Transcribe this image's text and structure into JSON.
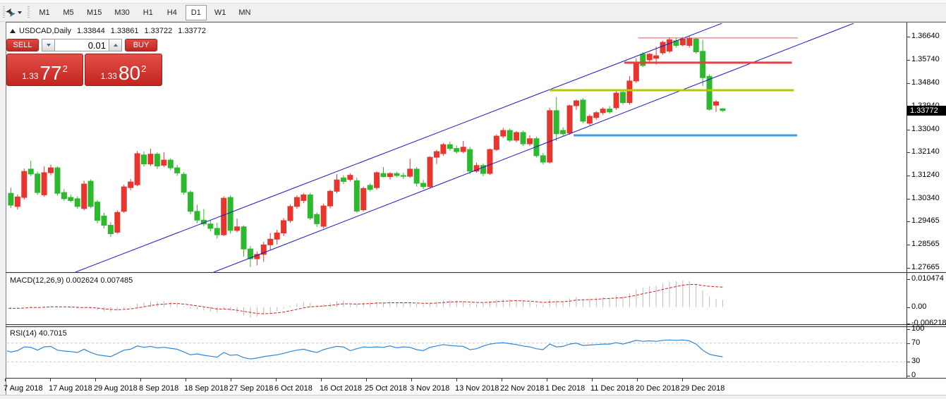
{
  "toolbar": {
    "tool_icon": "cursor-arrows-icon",
    "dropdown_icon": "caret-down-icon",
    "timeframes": [
      {
        "label": "M1",
        "active": false
      },
      {
        "label": "M5",
        "active": false
      },
      {
        "label": "M15",
        "active": false
      },
      {
        "label": "M30",
        "active": false
      },
      {
        "label": "H1",
        "active": false
      },
      {
        "label": "H4",
        "active": false
      },
      {
        "label": "D1",
        "active": true
      },
      {
        "label": "W1",
        "active": false
      },
      {
        "label": "MN",
        "active": false
      }
    ]
  },
  "chart": {
    "header": {
      "symbol": "USDCAD,Daily",
      "open": "1.33844",
      "high": "1.33861",
      "low": "1.33722",
      "close": "1.33772"
    },
    "one_click": {
      "sell_label": "SELL",
      "buy_label": "BUY",
      "volume": "0.01",
      "sell_price_small": "1.33",
      "sell_price_big": "77",
      "sell_price_sup": "2",
      "buy_price_small": "1.33",
      "buy_price_big": "80",
      "buy_price_sup": "2"
    },
    "current_price_tag": "1.33772",
    "price_axis_labels": [
      "1.36640",
      "1.35740",
      "1.34840",
      "1.33940",
      "1.33040",
      "1.32140",
      "1.31240",
      "1.30340",
      "1.29465",
      "1.28565",
      "1.27665"
    ],
    "date_axis_labels": [
      "7 Aug 2018",
      "17 Aug 2018",
      "29 Aug 2018",
      "8 Sep 2018",
      "18 Sep 2018",
      "27 Sep 2018",
      "6 Oct 2018",
      "16 Oct 2018",
      "25 Oct 2018",
      "3 Nov 2018",
      "13 Nov 2018",
      "22 Nov 2018",
      "1 Dec 2018",
      "11 Dec 2018",
      "20 Dec 2018",
      "29 Dec 2018"
    ]
  },
  "indicators": {
    "macd": {
      "label": "MACD(12,26,9) 0.002624 0.007485",
      "axis_labels": [
        "0.010474",
        "0.00",
        "-0.006218"
      ],
      "axis_values": [
        0.010474,
        0,
        -0.006218
      ]
    },
    "rsi": {
      "label": "RSI(14) 40.7015",
      "axis_labels": [
        "100",
        "70",
        "30",
        "0"
      ],
      "axis_values": [
        100,
        70,
        30,
        0
      ]
    }
  },
  "chart_data": {
    "type": "candlestick",
    "symbol": "USDCAD",
    "timeframe": "Daily",
    "price_range": {
      "top": 1.3716,
      "bottom": 1.27502
    },
    "colors": {
      "bull": "#e8352e",
      "bear": "#2db92d",
      "trend": "#1616c8",
      "res_thin": "#ff5252",
      "res_thick": "#f03c3c",
      "pivot_olive": "#b7c800",
      "support_blue": "#3c9fe6",
      "macd_hist": "#b9b9b9",
      "macd_signal": "#d02020",
      "rsi_line": "#2e86d9",
      "rsi_level": "#c8c8c8"
    },
    "candles": [
      [
        1.2994,
        1.3066,
        1.298,
        1.3054
      ],
      [
        1.3056,
        1.3078,
        1.2999,
        1.301
      ],
      [
        1.3005,
        1.3052,
        1.2993,
        1.3042
      ],
      [
        1.304,
        1.3152,
        1.3032,
        1.3141
      ],
      [
        1.315,
        1.3183,
        1.3122,
        1.3131
      ],
      [
        1.3131,
        1.314,
        1.305,
        1.3059
      ],
      [
        1.305,
        1.316,
        1.3043,
        1.3136
      ],
      [
        1.3136,
        1.3168,
        1.3126,
        1.3155
      ],
      [
        1.3155,
        1.3161,
        1.3048,
        1.3056
      ],
      [
        1.3059,
        1.3072,
        1.3026,
        1.3035
      ],
      [
        1.304,
        1.3051,
        1.3021,
        1.3028
      ],
      [
        1.3035,
        1.3044,
        1.2996,
        1.3005
      ],
      [
        1.2997,
        1.3105,
        1.299,
        1.3092
      ],
      [
        1.3103,
        1.311,
        1.2998,
        1.3005
      ],
      [
        1.3022,
        1.303,
        1.294,
        1.2951
      ],
      [
        1.2968,
        1.298,
        1.292,
        1.2932
      ],
      [
        1.2932,
        1.2944,
        1.2886,
        1.2899
      ],
      [
        1.2905,
        1.299,
        1.2899,
        1.2982
      ],
      [
        1.2986,
        1.309,
        1.298,
        1.3081
      ],
      [
        1.3078,
        1.3112,
        1.3068,
        1.31
      ],
      [
        1.3089,
        1.322,
        1.3083,
        1.321
      ],
      [
        1.3205,
        1.3218,
        1.316,
        1.317
      ],
      [
        1.317,
        1.3229,
        1.3162,
        1.3208
      ],
      [
        1.3208,
        1.3215,
        1.315,
        1.3162
      ],
      [
        1.3165,
        1.3215,
        1.3158,
        1.3185
      ],
      [
        1.3185,
        1.3192,
        1.3146,
        1.3155
      ],
      [
        1.3155,
        1.3166,
        1.3124,
        1.3135
      ],
      [
        1.313,
        1.3138,
        1.305,
        1.306
      ],
      [
        1.306,
        1.3068,
        1.2975,
        1.2986
      ],
      [
        1.2986,
        1.3012,
        1.294,
        1.2952
      ],
      [
        1.2952,
        1.2995,
        1.2928,
        1.2937
      ],
      [
        1.2937,
        1.295,
        1.2908,
        1.292
      ],
      [
        1.292,
        1.2942,
        1.288,
        1.2895
      ],
      [
        1.2895,
        1.3045,
        1.289,
        1.3037
      ],
      [
        1.304,
        1.3048,
        1.29,
        1.2912
      ],
      [
        1.2912,
        1.2958,
        1.2905,
        1.2926
      ],
      [
        1.2926,
        1.2932,
        1.281,
        1.284
      ],
      [
        1.284,
        1.2852,
        1.277,
        1.2802
      ],
      [
        1.2802,
        1.283,
        1.2776,
        1.2819
      ],
      [
        1.2819,
        1.2868,
        1.279,
        1.2856
      ],
      [
        1.2856,
        1.2902,
        1.2836,
        1.2878
      ],
      [
        1.2878,
        1.2915,
        1.2858,
        1.2902
      ],
      [
        1.2902,
        1.296,
        1.289,
        1.295
      ],
      [
        1.295,
        1.3012,
        1.2942,
        1.3005
      ],
      [
        1.3005,
        1.3048,
        1.2996,
        1.304
      ],
      [
        1.3028,
        1.3056,
        1.3018,
        1.305
      ],
      [
        1.305,
        1.3058,
        1.2952,
        1.296
      ],
      [
        1.2974,
        1.2982,
        1.2926,
        1.2938
      ],
      [
        1.2928,
        1.3015,
        1.292,
        1.3007
      ],
      [
        1.3007,
        1.307,
        1.2998,
        1.3064
      ],
      [
        1.3064,
        1.313,
        1.3056,
        1.3108
      ],
      [
        1.3116,
        1.3126,
        1.3092,
        1.3102
      ],
      [
        1.311,
        1.3134,
        1.3102,
        1.3126
      ],
      [
        1.3105,
        1.3118,
        1.298,
        1.2987
      ],
      [
        1.2992,
        1.3082,
        1.2985,
        1.3075
      ],
      [
        1.3087,
        1.3095,
        1.3064,
        1.3071
      ],
      [
        1.3078,
        1.3142,
        1.307,
        1.3136
      ],
      [
        1.3133,
        1.3158,
        1.3118,
        1.3121
      ],
      [
        1.3121,
        1.3138,
        1.311,
        1.3133
      ],
      [
        1.3133,
        1.314,
        1.3118,
        1.3125
      ],
      [
        1.3125,
        1.3136,
        1.3112,
        1.3122
      ],
      [
        1.3122,
        1.319,
        1.3116,
        1.315
      ],
      [
        1.315,
        1.3158,
        1.3082,
        1.3095
      ],
      [
        1.3095,
        1.3108,
        1.3072,
        1.3082
      ],
      [
        1.3082,
        1.32,
        1.3076,
        1.3196
      ],
      [
        1.3196,
        1.3225,
        1.317,
        1.3218
      ],
      [
        1.321,
        1.3252,
        1.3202,
        1.3245
      ],
      [
        1.3245,
        1.3256,
        1.3222,
        1.323
      ],
      [
        1.323,
        1.3242,
        1.321,
        1.3218
      ],
      [
        1.3218,
        1.3259,
        1.3212,
        1.3235
      ],
      [
        1.3226,
        1.3236,
        1.313,
        1.3142
      ],
      [
        1.3142,
        1.3175,
        1.3136,
        1.3164
      ],
      [
        1.3164,
        1.3172,
        1.3122,
        1.3133
      ],
      [
        1.3133,
        1.323,
        1.3128,
        1.3226
      ],
      [
        1.3226,
        1.3285,
        1.322,
        1.3278
      ],
      [
        1.3278,
        1.331,
        1.327,
        1.33
      ],
      [
        1.33,
        1.3308,
        1.3255,
        1.3262
      ],
      [
        1.3262,
        1.3298,
        1.3254,
        1.3292
      ],
      [
        1.3292,
        1.33,
        1.324,
        1.3248
      ],
      [
        1.3248,
        1.3282,
        1.324,
        1.3268
      ],
      [
        1.3268,
        1.3276,
        1.3195,
        1.3202
      ],
      [
        1.3202,
        1.3212,
        1.3168,
        1.3177
      ],
      [
        1.3177,
        1.3388,
        1.3172,
        1.3377
      ],
      [
        1.3377,
        1.343,
        1.3259,
        1.3287
      ],
      [
        1.33,
        1.3312,
        1.3278,
        1.3287
      ],
      [
        1.329,
        1.34,
        1.3284,
        1.3396
      ],
      [
        1.3396,
        1.342,
        1.338,
        1.3415
      ],
      [
        1.3418,
        1.3425,
        1.3328,
        1.3336
      ],
      [
        1.3328,
        1.3362,
        1.332,
        1.3355
      ],
      [
        1.335,
        1.3375,
        1.3342,
        1.3369
      ],
      [
        1.3369,
        1.339,
        1.336,
        1.3383
      ],
      [
        1.3383,
        1.3394,
        1.3365,
        1.3372
      ],
      [
        1.3388,
        1.3452,
        1.338,
        1.3445
      ],
      [
        1.3448,
        1.346,
        1.34,
        1.3408
      ],
      [
        1.3408,
        1.3511,
        1.34,
        1.3492
      ],
      [
        1.3492,
        1.358,
        1.3484,
        1.356
      ],
      [
        1.3596,
        1.3604,
        1.3546,
        1.3552
      ],
      [
        1.3574,
        1.36,
        1.3565,
        1.3596
      ],
      [
        1.358,
        1.3625,
        1.3556,
        1.359
      ],
      [
        1.3601,
        1.3648,
        1.3594,
        1.3642
      ],
      [
        1.3608,
        1.3662,
        1.36,
        1.3652
      ],
      [
        1.3648,
        1.3658,
        1.3622,
        1.363
      ],
      [
        1.3632,
        1.3663,
        1.3626,
        1.3655
      ],
      [
        1.363,
        1.3666,
        1.3622,
        1.3658
      ],
      [
        1.3655,
        1.366,
        1.3598,
        1.3605
      ],
      [
        1.3607,
        1.3652,
        1.3472,
        1.3505
      ],
      [
        1.351,
        1.3518,
        1.3377,
        1.3382
      ],
      [
        1.3398,
        1.3418,
        1.3372,
        1.3411
      ],
      [
        1.33844,
        1.33861,
        1.33722,
        1.33772
      ]
    ],
    "trendlines": [
      {
        "name": "channel-line-main",
        "points": [
          [
            10.7,
            1.27502
          ],
          [
            107.9,
            1.3716
          ]
        ]
      },
      {
        "name": "channel-line-parallel",
        "points": [
          [
            31.5,
            1.27502
          ],
          [
            127.7,
            1.3716
          ]
        ]
      }
    ],
    "hlines": [
      {
        "name": "resistance-thin-red",
        "price": 1.3659,
        "from": 95.3,
        "to": 119.3,
        "width": 1,
        "color_key": "res_thin"
      },
      {
        "name": "resistance-thick-red",
        "price": 1.3563,
        "from": 93.2,
        "to": 118.4,
        "width": 3,
        "color_key": "res_thick"
      },
      {
        "name": "pivot-olive",
        "price": 1.3456,
        "from": 82.0,
        "to": 118.7,
        "width": 3,
        "color_key": "pivot_olive"
      },
      {
        "name": "support-blue",
        "price": 1.3281,
        "from": 85.6,
        "to": 119.2,
        "width": 3,
        "color_key": "support_blue"
      }
    ],
    "macd": {
      "range_top": 0.010474,
      "range_bottom": -0.006218,
      "values": [
        -0.0005,
        -0.0008,
        -0.0006,
        0.0002,
        0.0004,
        0.0,
        0.0004,
        0.0006,
        0.0003,
        -0.0001,
        -0.0004,
        -0.0006,
        -0.0002,
        -0.0006,
        -0.0012,
        -0.0016,
        -0.0019,
        -0.0014,
        -0.0006,
        0.0001,
        0.0012,
        0.0018,
        0.0022,
        0.0021,
        0.0022,
        0.0019,
        0.0014,
        0.0004,
        -0.0006,
        -0.0009,
        -0.0013,
        -0.0017,
        -0.0021,
        -0.001,
        -0.0015,
        -0.0022,
        -0.0032,
        -0.004,
        -0.0037,
        -0.0029,
        -0.0022,
        -0.0015,
        -0.0006,
        0.0004,
        0.0013,
        0.0019,
        0.0015,
        0.0008,
        0.001,
        0.0016,
        0.0022,
        0.0024,
        0.0008,
        0.001,
        0.0016,
        0.0018,
        0.0019,
        0.0018,
        0.0021,
        0.0016,
        0.0016,
        0.0014,
        0.0012,
        0.0008,
        0.0014,
        0.002,
        0.0026,
        0.0026,
        0.0024,
        0.0022,
        0.0012,
        0.001,
        0.0016,
        0.0022,
        0.0028,
        0.003,
        0.0028,
        0.0026,
        0.0021,
        0.0018,
        0.001,
        0.0008,
        0.0028,
        0.0022,
        0.0022,
        0.0032,
        0.0038,
        0.003,
        0.0032,
        0.0036,
        0.0038,
        0.0036,
        0.0044,
        0.004,
        0.0052,
        0.0066,
        0.0072,
        0.0078,
        0.008,
        0.0088,
        0.0096,
        0.0098,
        0.01,
        0.0098,
        0.0086,
        0.0062,
        0.004,
        0.003,
        0.002624
      ],
      "signal": [
        -0.0004,
        -0.0005,
        -0.0005,
        -0.0004,
        -0.0002,
        -0.0002,
        -0.0001,
        0.0001,
        0.0001,
        0.0001,
        0.0,
        -0.0001,
        -0.0002,
        -0.0002,
        -0.0004,
        -0.0007,
        -0.0009,
        -0.001,
        -0.0009,
        -0.0007,
        -0.0003,
        0.0001,
        0.0005,
        0.0009,
        0.0011,
        0.0013,
        0.0013,
        0.0011,
        0.0008,
        0.0004,
        0.0001,
        -0.0003,
        -0.0007,
        -0.0007,
        -0.0009,
        -0.0012,
        -0.0016,
        -0.002,
        -0.0024,
        -0.0025,
        -0.0024,
        -0.0022,
        -0.0019,
        -0.0014,
        -0.0009,
        -0.0003,
        0.0001,
        0.0002,
        0.0004,
        0.0006,
        0.0009,
        0.0012,
        0.0012,
        0.0011,
        0.0012,
        0.0013,
        0.0015,
        0.0015,
        0.0016,
        0.0016,
        0.0016,
        0.0016,
        0.0015,
        0.0014,
        0.0014,
        0.0015,
        0.0017,
        0.0019,
        0.002,
        0.002,
        0.0019,
        0.0017,
        0.0017,
        0.0018,
        0.002,
        0.0022,
        0.0023,
        0.0024,
        0.0023,
        0.0022,
        0.002,
        0.0017,
        0.0019,
        0.002,
        0.002,
        0.0022,
        0.0026,
        0.0027,
        0.0028,
        0.0029,
        0.0031,
        0.0032,
        0.0034,
        0.0035,
        0.0039,
        0.0044,
        0.005,
        0.0055,
        0.006,
        0.0066,
        0.0072,
        0.0077,
        0.0082,
        0.0085,
        0.0085,
        0.0081,
        0.0078,
        0.0076,
        0.007485
      ]
    },
    "rsi": {
      "levels": [
        70,
        30
      ],
      "values": [
        55,
        51,
        54,
        62,
        61,
        55,
        62,
        63,
        55,
        53,
        52,
        50,
        57,
        50,
        45,
        43,
        41,
        48,
        55,
        57,
        64,
        61,
        63,
        60,
        61,
        59,
        57,
        51,
        45,
        47,
        44,
        42,
        40,
        50,
        44,
        45,
        39,
        36,
        38,
        41,
        43,
        45,
        48,
        52,
        55,
        57,
        53,
        50,
        56,
        60,
        63,
        62,
        54,
        58,
        62,
        61,
        62,
        61,
        64,
        60,
        62,
        61,
        56,
        54,
        61,
        64,
        67,
        65,
        64,
        63,
        56,
        58,
        64,
        68,
        70,
        71,
        69,
        67,
        64,
        62,
        58,
        56,
        68,
        62,
        63,
        68,
        70,
        65,
        66,
        67,
        68,
        68,
        71,
        68,
        72,
        76,
        74,
        75,
        74,
        76,
        77,
        76,
        77,
        75,
        68,
        55,
        46,
        43,
        40.7015
      ]
    }
  }
}
